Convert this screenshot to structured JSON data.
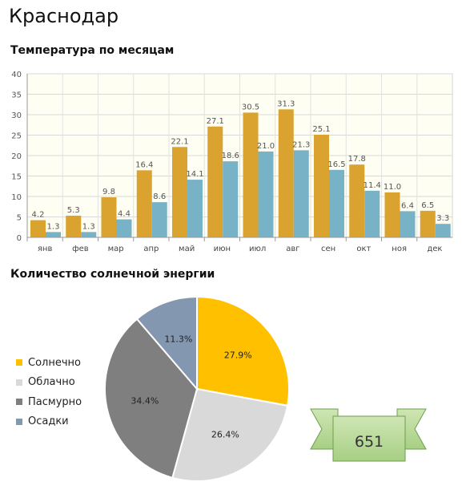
{
  "city": "Краснодар",
  "bar_chart_title": "Температура по месяцам",
  "pie_chart_title": "Количество солнечной энергии",
  "badge_value": "651",
  "chart_data": [
    {
      "type": "bar",
      "categories": [
        "янв",
        "фев",
        "мар",
        "апр",
        "май",
        "июн",
        "июл",
        "авг",
        "сен",
        "окт",
        "ноя",
        "дек"
      ],
      "series": [
        {
          "values": [
            4.2,
            5.3,
            9.8,
            16.4,
            22.1,
            27.1,
            30.5,
            31.3,
            25.1,
            17.8,
            11.0,
            6.5
          ],
          "labels": [
            "4.2",
            "5.3",
            "9.8",
            "16.4",
            "22.1",
            "27.1",
            "30.5",
            "31.3",
            "25.1",
            "17.8",
            "11.0",
            "6.5"
          ],
          "color": "#daa22f"
        },
        {
          "values": [
            1.3,
            1.3,
            4.4,
            8.6,
            14.1,
            18.6,
            21.0,
            21.3,
            16.5,
            11.4,
            6.4,
            3.3
          ],
          "labels": [
            "1.3",
            "1.3",
            "4.4",
            "8.6",
            "14.1",
            "18.6",
            "21.0",
            "21.3",
            "16.5",
            "11.4",
            "6.4",
            "3.3"
          ],
          "color": "#78b2c6"
        }
      ],
      "ylim": [
        0,
        40
      ],
      "yticks": [
        "0",
        "5",
        "10",
        "15",
        "20",
        "25",
        "30",
        "35",
        "40"
      ],
      "grid": true,
      "xlabel": "",
      "ylabel": "",
      "title": ""
    },
    {
      "type": "pie",
      "slices": [
        {
          "name": "Солнечно",
          "value": 27.9,
          "label": "27.9%",
          "color": "#ffc000"
        },
        {
          "name": "Облачно",
          "value": 26.4,
          "label": "26.4%",
          "color": "#d9d9d9"
        },
        {
          "name": "Пасмурно",
          "value": 34.4,
          "label": "34.4%",
          "color": "#7f7f7f"
        },
        {
          "name": "Осадки",
          "value": 11.3,
          "label": "11.3%",
          "color": "#8497b0"
        }
      ],
      "legend": "left"
    }
  ]
}
